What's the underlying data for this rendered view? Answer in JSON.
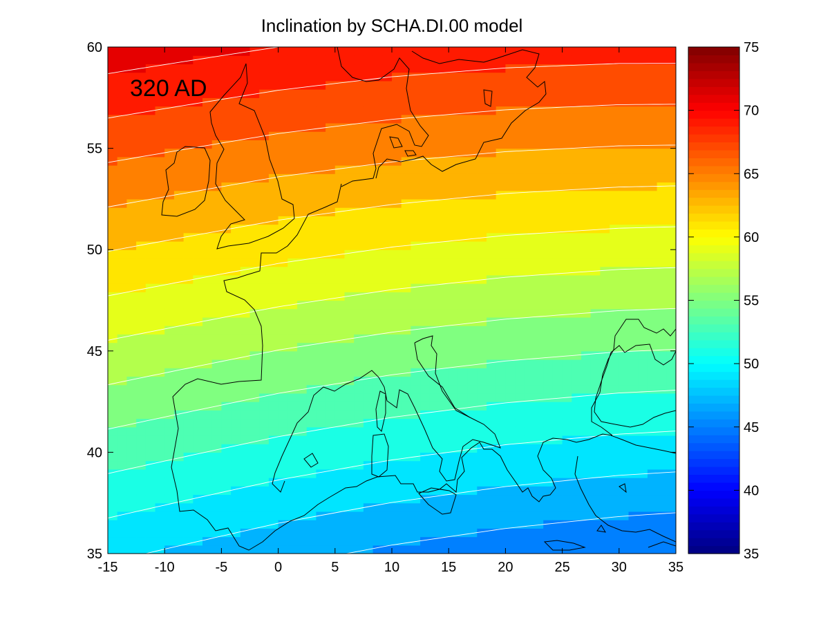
{
  "chart_data": {
    "type": "heatmap",
    "title": "Inclination by SCHA.DI.00 model",
    "annotation": "320 AD",
    "xlabel": "",
    "ylabel": "",
    "xlim": [
      -15,
      35
    ],
    "ylim": [
      35,
      60
    ],
    "x_ticks": [
      "-15",
      "-10",
      "-5",
      "0",
      "5",
      "10",
      "15",
      "20",
      "25",
      "30",
      "35"
    ],
    "y_ticks": [
      "35",
      "40",
      "45",
      "50",
      "55",
      "60"
    ],
    "colorbar": {
      "range": [
        35,
        75
      ],
      "ticks": [
        "35",
        "40",
        "45",
        "50",
        "55",
        "60",
        "65",
        "70",
        "75"
      ],
      "colormap": "jet"
    },
    "contour_interval": 2,
    "contour_levels": [
      46,
      48,
      50,
      52,
      54,
      56,
      58,
      60,
      62,
      64,
      66,
      68,
      70
    ],
    "contour_line_color": "#ffffff",
    "coastline_color": "#000000",
    "model_samples": {
      "lon": [
        -15,
        0,
        10,
        20,
        30,
        35
      ],
      "inclination_at_lat_35": [
        48.4,
        46.6,
        45.6,
        44.8,
        44.2,
        44.0
      ],
      "inclination_at_lat_60": [
        71.2,
        70.0,
        69.4,
        69.0,
        68.8,
        68.8
      ]
    }
  }
}
